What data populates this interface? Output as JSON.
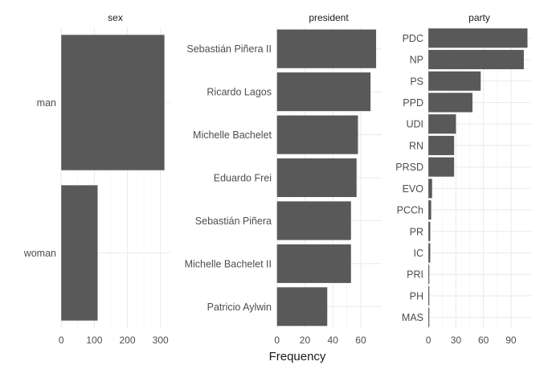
{
  "chart_data": {
    "type": "bar",
    "orientation": "horizontal",
    "xlabel": "Frequency",
    "grid": true,
    "facets": [
      {
        "title": "sex",
        "categories": [
          "man",
          "woman"
        ],
        "values": [
          312,
          110
        ],
        "xlim": [
          -3,
          330
        ],
        "xticks": [
          0,
          100,
          200,
          300
        ]
      },
      {
        "title": "president",
        "categories": [
          "Sebastián Piñera II",
          "Ricardo Lagos",
          "Michelle Bachelet",
          "Eduardo Frei",
          "Sebastián Piñera",
          "Michelle Bachelet II",
          "Patricio Aylwin"
        ],
        "values": [
          71,
          67,
          58,
          57,
          53,
          53,
          36
        ],
        "xlim": [
          -1,
          75
        ],
        "xticks": [
          0,
          20,
          40,
          60
        ]
      },
      {
        "title": "party",
        "categories": [
          "PDC",
          "NP",
          "PS",
          "PPD",
          "UDI",
          "RN",
          "PRSD",
          "EVO",
          "PCCh",
          "PR",
          "IC",
          "PRI",
          "PH",
          "MAS"
        ],
        "values": [
          108,
          104,
          57,
          48,
          30,
          28,
          28,
          4,
          3,
          2,
          2,
          1,
          1,
          1
        ],
        "xlim": [
          -1,
          112
        ],
        "xticks": [
          0,
          30,
          60,
          90
        ]
      }
    ]
  }
}
